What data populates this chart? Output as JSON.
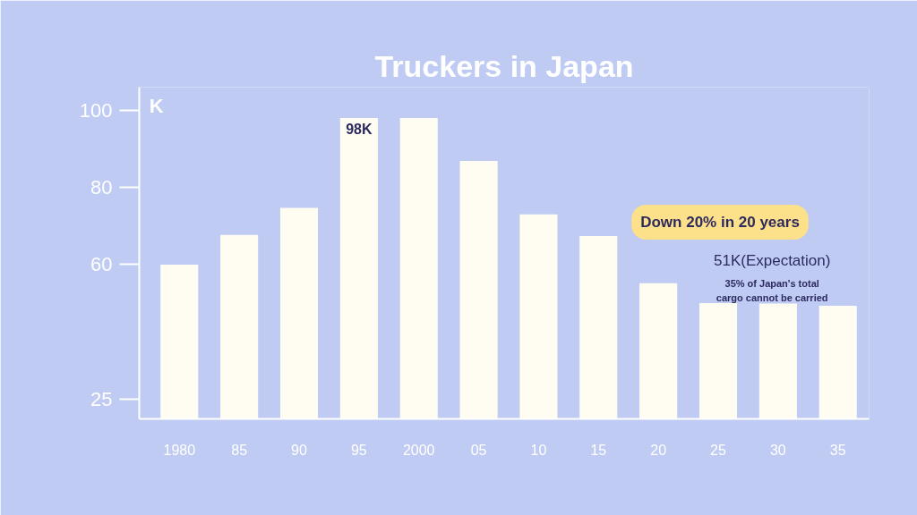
{
  "chart_data": {
    "type": "bar",
    "title": "Truckers in Japan",
    "ylabel": "K",
    "categories": [
      "1980",
      "85",
      "90",
      "95",
      "2000",
      "05",
      "10",
      "15",
      "20",
      "25",
      "30",
      "35"
    ],
    "values": [
      60,
      67.7,
      74.7,
      98,
      98,
      86.9,
      73,
      67.4,
      55.2,
      50,
      49.9,
      49.3
    ],
    "color": "#fffdf2",
    "ylim": [
      20,
      106
    ],
    "yticks": [
      25,
      60,
      80,
      100
    ],
    "grid": false,
    "annotations": [
      {
        "text": "98K",
        "x": "95",
        "y": 98
      },
      "Down 20% in 20 years",
      "51K(Expectation)",
      "35% of Japan's total cargo cannot be carried"
    ]
  }
}
